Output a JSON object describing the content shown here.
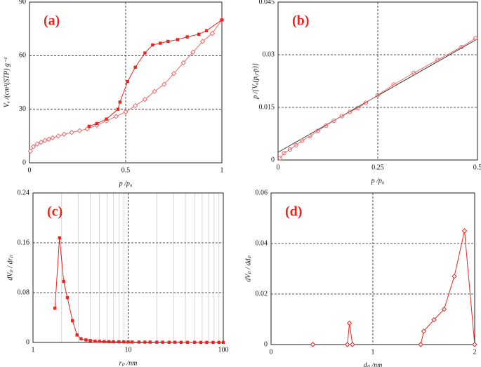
{
  "chart_data": [
    {
      "type": "line",
      "panel_label": "(a)",
      "x_label": "p /p₀",
      "y_label": "Vₐ /(cm³(STP) g⁻¹",
      "xlim": [
        0,
        1
      ],
      "ylim": [
        0,
        90
      ],
      "xticks": [
        0,
        0.5,
        1
      ],
      "yticks": [
        0,
        30,
        60,
        90
      ],
      "grid": true,
      "series": [
        {
          "color": "#f06a6a",
          "marker": "diamond",
          "x": [
            0.005,
            0.02,
            0.04,
            0.06,
            0.08,
            0.1,
            0.12,
            0.15,
            0.18,
            0.22,
            0.26,
            0.3,
            0.35,
            0.4,
            0.45,
            0.5,
            0.55,
            0.6,
            0.65,
            0.7,
            0.75,
            0.8,
            0.85,
            0.9,
            0.95,
            1.0
          ],
          "values": [
            6.5,
            9,
            10.5,
            11.5,
            12.5,
            13.2,
            14,
            15,
            16,
            17,
            18,
            19,
            21,
            23.5,
            26,
            28.5,
            32,
            35.5,
            40,
            44,
            50,
            56,
            62,
            68,
            72.5,
            80
          ]
        },
        {
          "color": "#e8251f",
          "marker": "square",
          "x": [
            1.0,
            0.92,
            0.88,
            0.82,
            0.77,
            0.72,
            0.68,
            0.64,
            0.6,
            0.55,
            0.51,
            0.47,
            0.46,
            0.4,
            0.35,
            0.31
          ],
          "values": [
            80,
            74,
            72,
            70.5,
            69,
            68,
            67,
            66,
            61.5,
            53.5,
            45.5,
            34,
            30,
            24.5,
            22,
            20.5
          ]
        }
      ]
    },
    {
      "type": "line",
      "panel_label": "(b)",
      "x_label": "p /p₀",
      "y_label": "p /{Vₐ(p₀-p)}",
      "xlim": [
        0,
        0.5
      ],
      "ylim": [
        0,
        0.045
      ],
      "xticks": [
        0,
        0.25,
        0.5
      ],
      "yticks": [
        0,
        0.015,
        0.03,
        0.045
      ],
      "grid": true,
      "series": [
        {
          "color": "#333333",
          "marker": "none",
          "x": [
            0,
            0.5
          ],
          "values": [
            0.0022,
            0.0345
          ]
        },
        {
          "color": "#f06a6a",
          "marker": "circle",
          "x": [
            0.005,
            0.015,
            0.03,
            0.045,
            0.06,
            0.08,
            0.1,
            0.12,
            0.14,
            0.16,
            0.18,
            0.2,
            0.22,
            0.25,
            0.29,
            0.34,
            0.4,
            0.46,
            0.495
          ],
          "values": [
            0.0005,
            0.002,
            0.003,
            0.0042,
            0.0055,
            0.0068,
            0.0083,
            0.0098,
            0.0112,
            0.0125,
            0.0137,
            0.0148,
            0.0163,
            0.0185,
            0.0215,
            0.0248,
            0.0285,
            0.0322,
            0.0347
          ]
        }
      ]
    },
    {
      "type": "line",
      "panel_label": "(c)",
      "x_label": "rₚ /nm",
      "y_label": "dVₚ / drₚ",
      "xscale": "log",
      "xlim": [
        1,
        100
      ],
      "ylim": [
        0,
        0.24
      ],
      "xticks": [
        1,
        10,
        100
      ],
      "xminorticks": [
        2,
        3,
        4,
        5,
        6,
        7,
        8,
        9,
        20,
        30,
        40,
        50,
        60,
        70,
        80,
        90
      ],
      "yticks": [
        0,
        0.08,
        0.16,
        0.24
      ],
      "grid": true,
      "series": [
        {
          "color": "#e8251f",
          "marker": "square",
          "x": [
            1.7,
            1.9,
            2.1,
            2.3,
            2.6,
            2.9,
            3.2,
            3.6,
            4,
            4.5,
            5,
            5.6,
            6.3,
            7,
            8,
            9,
            10,
            11,
            13,
            15,
            17,
            20,
            23,
            27,
            31,
            36,
            42,
            50,
            58,
            67,
            78,
            90,
            100
          ],
          "values": [
            0.055,
            0.168,
            0.098,
            0.072,
            0.035,
            0.012,
            0.006,
            0.004,
            0.003,
            0.002,
            0.0018,
            0.0015,
            0.0013,
            0.0011,
            0.001,
            0.0009,
            0.0008,
            0.0007,
            0.0006,
            0.0005,
            0.0005,
            0.0004,
            0.0004,
            0.0003,
            0.0003,
            0.0002,
            0.0002,
            0.0002,
            0.0001,
            0.0001,
            0.0001,
            0.0001,
            0.0001
          ]
        }
      ]
    },
    {
      "type": "line",
      "panel_label": "(d)",
      "x_label": "dₚ /nm",
      "y_label": "dVₚ / ddₚ",
      "xlim": [
        0,
        2
      ],
      "ylim": [
        0,
        0.06
      ],
      "xticks": [
        0,
        1,
        2
      ],
      "yticks": [
        0,
        0.02,
        0.04,
        0.06
      ],
      "grid": true,
      "series": [
        {
          "color": "#e8251f",
          "marker": "diamond",
          "x": [
            0.41
          ],
          "values": [
            0
          ]
        },
        {
          "color": "#e8251f",
          "marker": "diamond",
          "x": [
            0.75,
            0.77,
            0.8
          ],
          "values": [
            0,
            0.0085,
            0
          ]
        },
        {
          "color": "#e8251f",
          "marker": "diamond",
          "x": [
            1.47,
            1.5,
            1.6,
            1.7,
            1.8,
            1.9,
            2.0
          ],
          "values": [
            0,
            0.0053,
            0.0098,
            0.014,
            0.027,
            0.045,
            0
          ]
        }
      ]
    }
  ]
}
